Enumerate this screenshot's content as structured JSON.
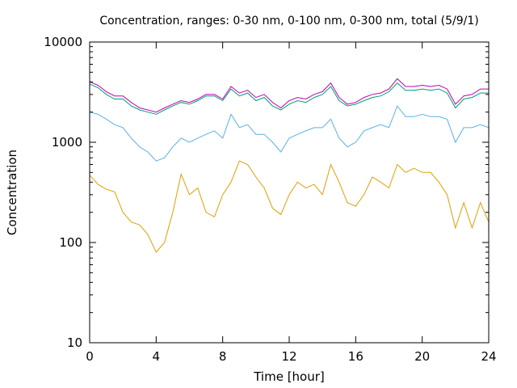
{
  "chart_data": {
    "type": "line",
    "title": "Concentration, ranges: 0-30 nm, 0-100 nm, 0-300 nm, total (5/9/1)",
    "xlabel": "Time [hour]",
    "ylabel": "Concentration",
    "xlim": [
      0,
      24
    ],
    "ylim": [
      10,
      10000
    ],
    "yscale": "log",
    "grid": false,
    "legend": "none",
    "x_ticks": [
      0,
      4,
      8,
      12,
      16,
      20,
      24
    ],
    "y_ticks": [
      10,
      100,
      1000,
      10000
    ],
    "x": [
      0,
      0.5,
      1,
      1.5,
      2,
      2.5,
      3,
      3.5,
      4,
      4.5,
      5,
      5.5,
      6,
      6.5,
      7,
      7.5,
      8,
      8.5,
      9,
      9.5,
      10,
      10.5,
      11,
      11.5,
      12,
      12.5,
      13,
      13.5,
      14,
      14.5,
      15,
      15.5,
      16,
      16.5,
      17,
      17.5,
      18,
      18.5,
      19,
      19.5,
      20,
      20.5,
      21,
      21.5,
      22,
      22.5,
      23,
      23.5,
      24
    ],
    "series": [
      {
        "color": "#c000c0",
        "values": [
          4000,
          3700,
          3200,
          2900,
          2900,
          2500,
          2200,
          2100,
          2000,
          2200,
          2400,
          2600,
          2500,
          2700,
          3000,
          3000,
          2700,
          3600,
          3100,
          3300,
          2800,
          3000,
          2500,
          2200,
          2600,
          2800,
          2700,
          3000,
          3200,
          3900,
          2800,
          2400,
          2500,
          2800,
          3000,
          3100,
          3400,
          4300,
          3600,
          3600,
          3700,
          3600,
          3700,
          3400,
          2400,
          2900,
          3000,
          3400,
          3400
        ]
      },
      {
        "color": "#009e73",
        "values": [
          3800,
          3500,
          3000,
          2700,
          2700,
          2300,
          2100,
          2000,
          1900,
          2100,
          2300,
          2500,
          2400,
          2600,
          2900,
          2900,
          2600,
          3400,
          2900,
          3100,
          2600,
          2800,
          2300,
          2100,
          2400,
          2600,
          2500,
          2800,
          3000,
          3600,
          2600,
          2300,
          2400,
          2600,
          2800,
          2900,
          3200,
          3900,
          3300,
          3300,
          3400,
          3300,
          3400,
          3100,
          2200,
          2700,
          2800,
          3100,
          3100
        ]
      },
      {
        "color": "#56b4e9",
        "values": [
          2000,
          1900,
          1700,
          1500,
          1400,
          1100,
          900,
          800,
          650,
          700,
          900,
          1100,
          1000,
          1100,
          1200,
          1300,
          1100,
          1900,
          1400,
          1500,
          1200,
          1200,
          1000,
          800,
          1100,
          1200,
          1300,
          1400,
          1400,
          1700,
          1100,
          900,
          1000,
          1300,
          1400,
          1500,
          1400,
          2300,
          1800,
          1800,
          1900,
          1800,
          1800,
          1700,
          1000,
          1400,
          1400,
          1500,
          1400
        ]
      },
      {
        "color": "#e69f00",
        "values": [
          470,
          380,
          340,
          320,
          200,
          160,
          150,
          120,
          80,
          100,
          200,
          480,
          300,
          350,
          200,
          180,
          300,
          400,
          650,
          600,
          450,
          350,
          220,
          190,
          300,
          400,
          350,
          380,
          300,
          600,
          400,
          250,
          230,
          300,
          450,
          400,
          350,
          600,
          500,
          550,
          500,
          500,
          400,
          300,
          140,
          250,
          140,
          250,
          160
        ]
      }
    ]
  }
}
